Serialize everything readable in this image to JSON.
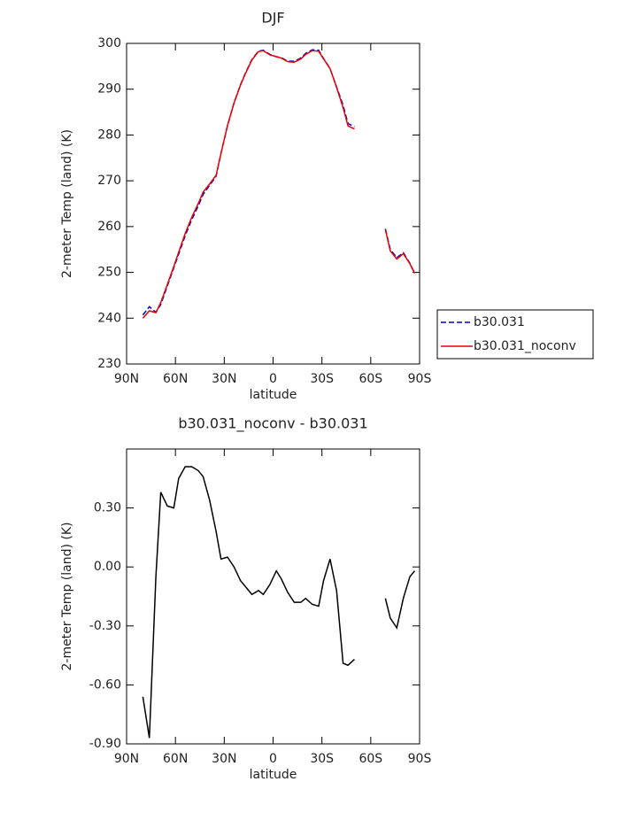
{
  "chart_data": [
    {
      "type": "line",
      "title": "DJF",
      "xlabel": "latitude",
      "ylabel": "2-meter Temp (land) (K)",
      "x": [
        80,
        76,
        72,
        69,
        65,
        61,
        58,
        54,
        50,
        46,
        43,
        39,
        35,
        32,
        28,
        24,
        20,
        17,
        13,
        9,
        6,
        2,
        -2,
        -5,
        -9,
        -13,
        -17,
        -20,
        -24,
        -28,
        -31,
        -35,
        -39,
        -43,
        -46,
        -50,
        -60,
        -69,
        -72,
        -76,
        -80,
        -84,
        -87
      ],
      "xlim": [
        90,
        -90
      ],
      "xticks": [
        {
          "value": 90,
          "label": "90N"
        },
        {
          "value": 60,
          "label": "60N"
        },
        {
          "value": 30,
          "label": "30N"
        },
        0,
        {
          "value": -30,
          "label": "30S"
        },
        {
          "value": -60,
          "label": "60S"
        },
        {
          "value": -90,
          "label": "90S"
        }
      ],
      "ylim": [
        230,
        300
      ],
      "yticks": [
        230,
        240,
        250,
        260,
        270,
        280,
        290,
        300
      ],
      "legend": "right",
      "series": [
        {
          "name": "b30.031",
          "color": "#0000cc",
          "linestyle": "dashed",
          "values": [
            240.7,
            242.5,
            241.3,
            243,
            247,
            251,
            254,
            258,
            261.5,
            264.5,
            267,
            269,
            271,
            276,
            282,
            287,
            291,
            293.5,
            296.5,
            298.3,
            298.5,
            297.6,
            297.1,
            296.9,
            296.1,
            296.1,
            296.8,
            297.8,
            298.6,
            298.5,
            296.7,
            294.5,
            290.5,
            286.5,
            282.5,
            281.8,
            null,
            259.5,
            255,
            253.2,
            254.3,
            252,
            249.8
          ]
        },
        {
          "name": "b30.031_noconv",
          "color": "#ee0000",
          "linestyle": "solid",
          "values": [
            240.0,
            241.6,
            241.2,
            243.4,
            247.3,
            251.3,
            254.4,
            258.5,
            262.0,
            265.0,
            267.5,
            269.3,
            271.2,
            276.0,
            282.1,
            287.0,
            290.9,
            293.4,
            296.4,
            298.2,
            298.4,
            297.5,
            297.1,
            296.8,
            296.0,
            295.9,
            296.6,
            297.6,
            298.4,
            298.3,
            296.6,
            294.5,
            290.4,
            286.0,
            282.0,
            281.3,
            null,
            259.3,
            254.7,
            252.9,
            254.1,
            251.9,
            249.8
          ]
        }
      ]
    },
    {
      "type": "line",
      "title": "b30.031_noconv - b30.031",
      "xlabel": "latitude",
      "ylabel": "2-meter Temp (land) (K)",
      "x": [
        80,
        76,
        72,
        69,
        65,
        61,
        58,
        54,
        50,
        46,
        43,
        39,
        35,
        32,
        28,
        24,
        20,
        17,
        13,
        9,
        6,
        2,
        -2,
        -5,
        -9,
        -13,
        -17,
        -20,
        -24,
        -28,
        -31,
        -35,
        -39,
        -43,
        -46,
        -50,
        -60,
        -69,
        -72,
        -76,
        -80,
        -84,
        -87
      ],
      "xlim": [
        90,
        -90
      ],
      "xticks": [
        {
          "value": 90,
          "label": "90N"
        },
        {
          "value": 60,
          "label": "60N"
        },
        {
          "value": 30,
          "label": "30N"
        },
        0,
        {
          "value": -30,
          "label": "30S"
        },
        {
          "value": -60,
          "label": "60S"
        },
        {
          "value": -90,
          "label": "90S"
        }
      ],
      "ylim": [
        -0.9,
        0.6
      ],
      "yticks": [
        {
          "value": 0.3,
          "label": "0.30"
        },
        {
          "value": 0,
          "label": "0.00"
        },
        {
          "value": -0.3,
          "label": "-0.30"
        },
        {
          "value": -0.6,
          "label": "-0.60"
        },
        {
          "value": -0.9,
          "label": "-0.90"
        }
      ],
      "color": "#000000",
      "values": [
        -0.66,
        -0.87,
        -0.05,
        0.38,
        0.31,
        0.3,
        0.45,
        0.51,
        0.51,
        0.49,
        0.46,
        0.34,
        0.18,
        0.04,
        0.05,
        0.0,
        -0.07,
        -0.1,
        -0.14,
        -0.12,
        -0.14,
        -0.09,
        -0.02,
        -0.06,
        -0.13,
        -0.18,
        -0.18,
        -0.16,
        -0.19,
        -0.2,
        -0.07,
        0.04,
        -0.12,
        -0.49,
        -0.5,
        -0.47,
        null,
        -0.16,
        -0.26,
        -0.31,
        -0.16,
        -0.05,
        -0.02
      ]
    }
  ]
}
